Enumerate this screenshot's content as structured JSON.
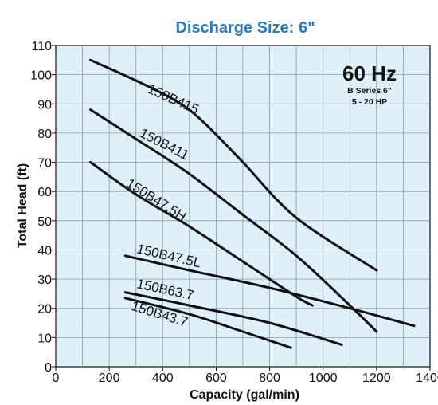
{
  "chart_data": {
    "type": "line",
    "title": "Discharge Size: 6\"",
    "xlabel": "Capacity (gal/min)",
    "ylabel": "Total Head (ft)",
    "xlim": [
      0,
      1400
    ],
    "ylim": [
      0,
      110
    ],
    "xticks": [
      0,
      200,
      400,
      600,
      800,
      1000,
      1200,
      1400
    ],
    "yticks": [
      0,
      10,
      20,
      30,
      40,
      50,
      60,
      70,
      80,
      90,
      100,
      110
    ],
    "grid": true,
    "background_color": "#dff0fa",
    "grid_color": "#8a9aa6",
    "title_color": "#2a7ab8",
    "legend": {
      "lines": [
        "60 Hz",
        "B Series 6\"",
        "5 - 20 HP"
      ],
      "placement": "top-right"
    },
    "series": [
      {
        "name": "150B415",
        "x": [
          130,
          300,
          450,
          550,
          700,
          900,
          1200
        ],
        "y": [
          105,
          98,
          91,
          84,
          70,
          51,
          33
        ]
      },
      {
        "name": "150B411",
        "x": [
          130,
          300,
          500,
          700,
          900,
          1100,
          1200
        ],
        "y": [
          88,
          78,
          66,
          52,
          38,
          21,
          12
        ]
      },
      {
        "name": "150B47.5H",
        "x": [
          130,
          300,
          500,
          700,
          900,
          960
        ],
        "y": [
          70,
          59,
          48,
          36,
          24,
          21
        ]
      },
      {
        "name": "150B47.5L",
        "x": [
          260,
          500,
          800,
          1100,
          1340
        ],
        "y": [
          38,
          33,
          27,
          20,
          14
        ]
      },
      {
        "name": "150B63.7",
        "x": [
          260,
          500,
          800,
          1070
        ],
        "y": [
          25.5,
          21,
          15,
          7.5
        ]
      },
      {
        "name": "150B43.7",
        "x": [
          260,
          500,
          700,
          880
        ],
        "y": [
          23.5,
          18,
          12,
          6.5
        ]
      }
    ],
    "label_positions": [
      {
        "name": "150B415",
        "x": 340,
        "y": 94,
        "angle": 24
      },
      {
        "name": "150B411",
        "x": 310,
        "y": 79,
        "angle": 27
      },
      {
        "name": "150B47.5H",
        "x": 260,
        "y": 62,
        "angle": 32
      },
      {
        "name": "150B47.5L",
        "x": 300,
        "y": 39,
        "angle": 13
      },
      {
        "name": "150B63.7",
        "x": 300,
        "y": 27,
        "angle": 12
      },
      {
        "name": "150B43.7",
        "x": 280,
        "y": 19.5,
        "angle": 17
      }
    ]
  }
}
